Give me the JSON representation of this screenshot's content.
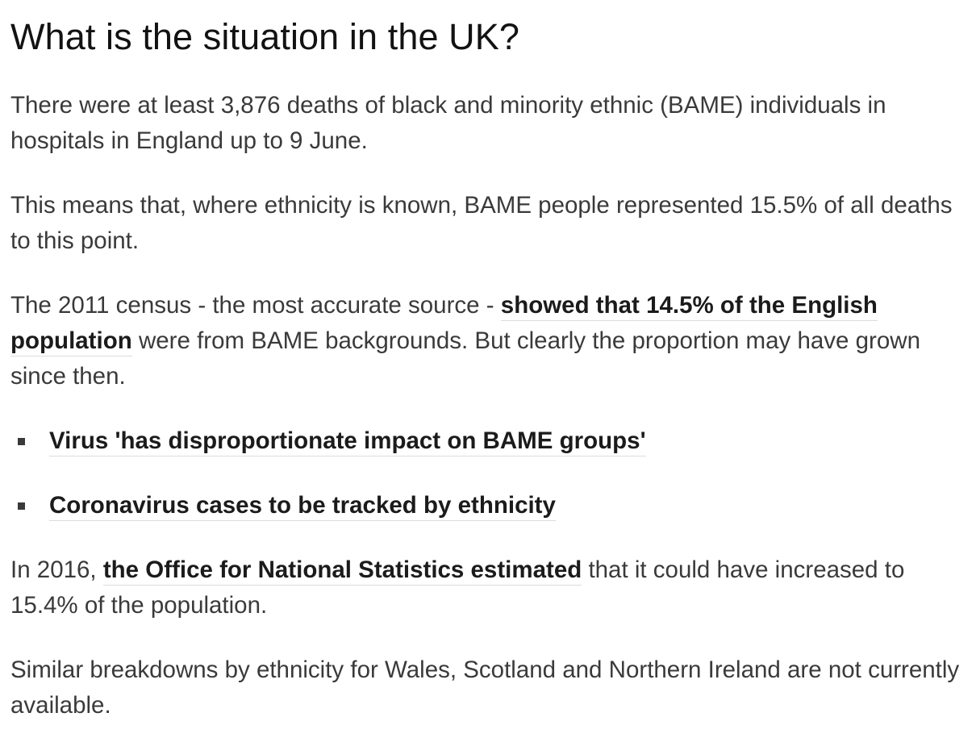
{
  "article": {
    "heading": "What is the situation in the UK?",
    "paragraphs": {
      "p1": "There were at least 3,876 deaths of black and minority ethnic (BAME) individuals in hospitals in England up to 9 June.",
      "p2": "This means that, where ethnicity is known, BAME people represented 15.5% of all deaths to this point.",
      "p3": {
        "before_link": "The 2011 census - the most accurate source - ",
        "link": "showed that 14.5% of the English population",
        "after_link": " were from BAME backgrounds. But clearly the proportion may have grown since then."
      },
      "p4": {
        "before_link": "In 2016, ",
        "link": "the Office for National Statistics estimated",
        "after_link": " that it could have increased to 15.4% of the population."
      },
      "p5": "Similar breakdowns by ethnicity for Wales, Scotland and Northern Ireland are not currently available."
    },
    "related_links": [
      "Virus 'has disproportionate impact on BAME groups'",
      "Coronavirus cases to be tracked by ethnicity"
    ]
  },
  "colors": {
    "heading_text": "#121212",
    "body_text": "#3a3a3a",
    "link_text": "#1b1b1b",
    "link_underline": "#dcdcdc",
    "background": "#ffffff"
  }
}
